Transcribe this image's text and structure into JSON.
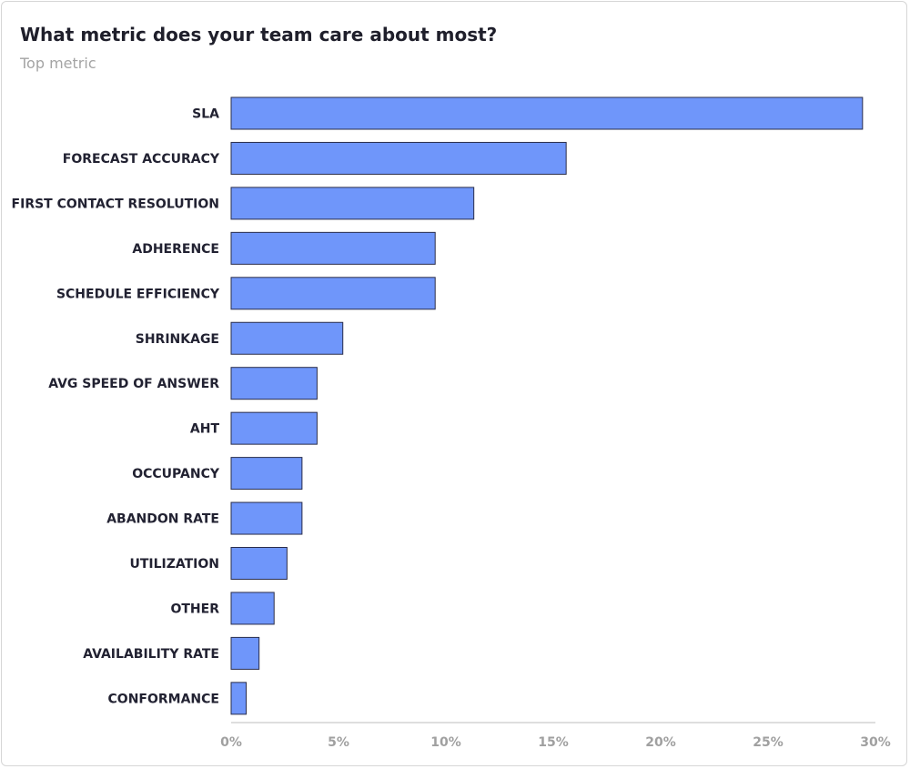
{
  "header": {
    "title": "What metric does your team care about most?",
    "subtitle": "Top metric"
  },
  "colors": {
    "bar_fill": "#6f96fa",
    "bar_stroke": "#2a2d4a",
    "axis": "#bdbdbd"
  },
  "chart_data": {
    "type": "bar",
    "orientation": "horizontal",
    "title": "What metric does your team care about most?",
    "subtitle": "Top metric",
    "categories": [
      "SLA",
      "FORECAST ACCURACY",
      "FIRST CONTACT RESOLUTION",
      "ADHERENCE",
      "SCHEDULE EFFICIENCY",
      "SHRINKAGE",
      "AVG SPEED OF ANSWER",
      "AHT",
      "OCCUPANCY",
      "ABANDON RATE",
      "UTILIZATION",
      "OTHER",
      "AVAILABILITY RATE",
      "CONFORMANCE"
    ],
    "values": [
      29.4,
      15.6,
      11.3,
      9.5,
      9.5,
      5.2,
      4.0,
      4.0,
      3.3,
      3.3,
      2.6,
      2.0,
      1.3,
      0.7
    ],
    "xlim": [
      0,
      30
    ],
    "x_ticks": [
      0,
      5,
      10,
      15,
      20,
      25,
      30
    ],
    "x_tick_labels": [
      "0%",
      "5%",
      "10%",
      "15%",
      "20%",
      "25%",
      "30%"
    ],
    "grid": false,
    "legend": "none"
  }
}
